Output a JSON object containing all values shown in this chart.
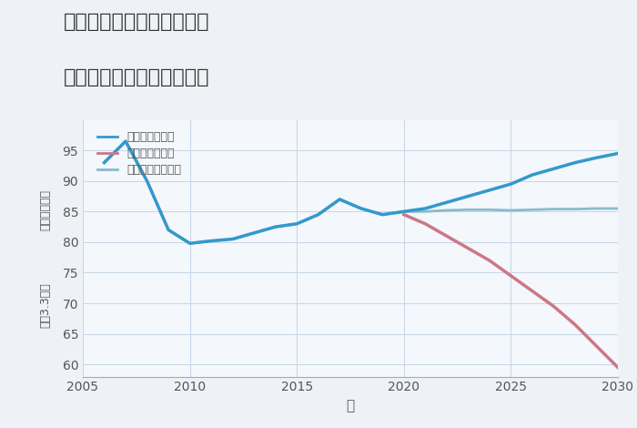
{
  "title_line1": "三重県桑名市多度町力尾の",
  "title_line2": "中古マンションの価格推移",
  "xlabel": "年",
  "ylabel_top": "単価（万円）",
  "ylabel_bottom": "坪（3.3㎡）",
  "xlim": [
    2005,
    2030
  ],
  "ylim": [
    58,
    100
  ],
  "yticks": [
    60,
    65,
    70,
    75,
    80,
    85,
    90,
    95
  ],
  "xticks": [
    2005,
    2010,
    2015,
    2020,
    2025,
    2030
  ],
  "bg_color": "#eef2f7",
  "plot_bg_color": "#f4f7fb",
  "grid_color": "#c5d5e8",
  "good_color": "#3399cc",
  "bad_color": "#cc7788",
  "normal_color": "#88bbcc",
  "legend_labels": [
    "グッドシナリオ",
    "バッドシナリオ",
    "ノーマルシナリオ"
  ],
  "good_x": [
    2006,
    2007,
    2008,
    2009,
    2010,
    2011,
    2012,
    2013,
    2014,
    2015,
    2016,
    2017,
    2018,
    2019,
    2020,
    2021,
    2022,
    2023,
    2024,
    2025,
    2026,
    2027,
    2028,
    2029,
    2030
  ],
  "good_y": [
    93.0,
    96.5,
    90.0,
    82.0,
    79.8,
    80.2,
    80.5,
    81.5,
    82.5,
    83.0,
    84.5,
    87.0,
    85.5,
    84.5,
    85.0,
    85.5,
    86.5,
    87.5,
    88.5,
    89.5,
    91.0,
    92.0,
    93.0,
    93.8,
    94.5
  ],
  "bad_x": [
    2020,
    2021,
    2022,
    2023,
    2024,
    2025,
    2026,
    2027,
    2028,
    2029,
    2030
  ],
  "bad_y": [
    84.5,
    83.0,
    81.0,
    79.0,
    77.0,
    74.5,
    72.0,
    69.5,
    66.5,
    63.0,
    59.5
  ],
  "normal_x": [
    2006,
    2007,
    2008,
    2009,
    2010,
    2011,
    2012,
    2013,
    2014,
    2015,
    2016,
    2017,
    2018,
    2019,
    2020,
    2021,
    2022,
    2023,
    2024,
    2025,
    2026,
    2027,
    2028,
    2029,
    2030
  ],
  "normal_y": [
    93.0,
    96.5,
    90.0,
    82.0,
    79.8,
    80.2,
    80.5,
    81.5,
    82.5,
    83.0,
    84.5,
    87.0,
    85.5,
    84.5,
    85.0,
    85.0,
    85.2,
    85.3,
    85.3,
    85.2,
    85.3,
    85.4,
    85.4,
    85.5,
    85.5
  ]
}
